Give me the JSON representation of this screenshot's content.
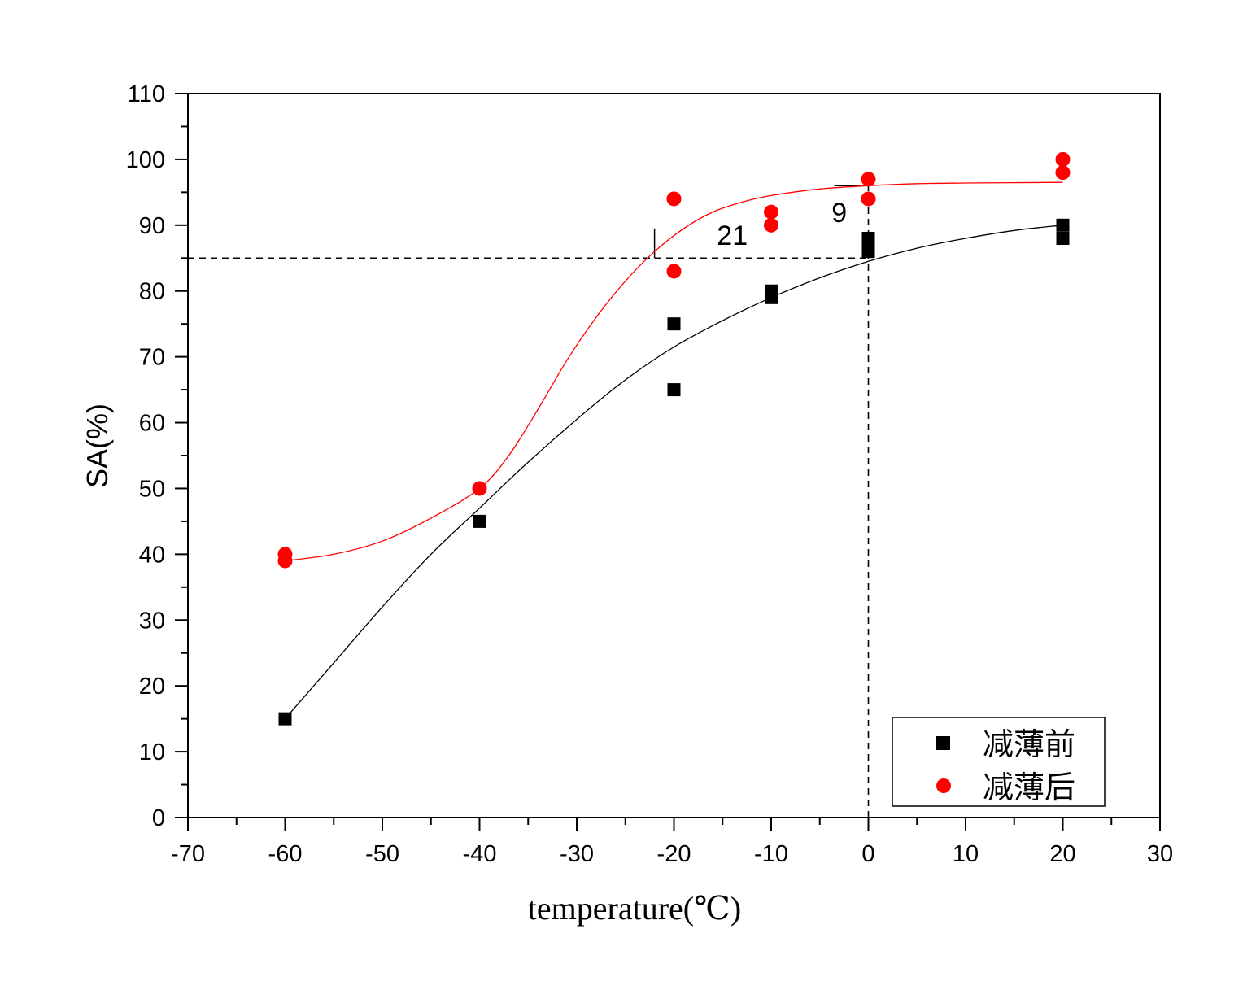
{
  "chart_data": {
    "type": "scatter",
    "xlabel": "temperature(℃)",
    "ylabel": "SA(%)",
    "xlim": [
      -70,
      30
    ],
    "ylim": [
      0,
      110
    ],
    "xticks": [
      -70,
      -60,
      -50,
      -40,
      -30,
      -20,
      -10,
      0,
      10,
      20,
      30
    ],
    "yticks": [
      0,
      10,
      20,
      30,
      40,
      50,
      60,
      70,
      80,
      90,
      100,
      110
    ],
    "xtick_labels": [
      "-70",
      "-60",
      "-50",
      "-40",
      "-30",
      "-20",
      "-10",
      "0",
      "10",
      "20",
      "30"
    ],
    "ytick_labels": [
      "0",
      "10",
      "20",
      "30",
      "40",
      "50",
      "60",
      "70",
      "80",
      "90",
      "100",
      "110"
    ],
    "grid": false,
    "legend_position": "bottom-right",
    "series": [
      {
        "name": "减薄前",
        "marker": "square",
        "color": "#000000",
        "x": [
          -60,
          -40,
          -20,
          -20,
          -10,
          -10,
          0,
          0,
          0,
          20,
          20
        ],
        "y": [
          15,
          45,
          75,
          65,
          80,
          79,
          88,
          87,
          86,
          90,
          88
        ],
        "fit_curve": {
          "x": [
            -60,
            -55,
            -50,
            -45,
            -40,
            -35,
            -30,
            -25,
            -20,
            -15,
            -10,
            -5,
            0,
            5,
            10,
            15,
            20
          ],
          "y": [
            15,
            23.5,
            32,
            40,
            47,
            54,
            60.5,
            66.5,
            71.5,
            75.5,
            79,
            82,
            84.5,
            86.5,
            88,
            89.2,
            90
          ]
        }
      },
      {
        "name": "减薄后",
        "marker": "circle",
        "color": "#ff0000",
        "x": [
          -60,
          -60,
          -40,
          -20,
          -20,
          -10,
          -10,
          0,
          0,
          20,
          20
        ],
        "y": [
          40,
          39,
          50,
          94,
          83,
          92,
          90,
          97,
          94,
          100,
          98
        ],
        "fit_curve": {
          "x": [
            -60,
            -55,
            -50,
            -45,
            -40,
            -37,
            -34,
            -31,
            -28,
            -25,
            -22,
            -19,
            -16,
            -13,
            -10,
            -5,
            0,
            5,
            10,
            20
          ],
          "y": [
            39,
            40,
            42,
            45.5,
            50,
            55,
            62,
            69.5,
            76,
            81.5,
            86,
            89.5,
            92,
            93.5,
            94.5,
            95.5,
            96,
            96.3,
            96.4,
            96.5
          ]
        }
      }
    ],
    "reference_lines": {
      "horizontal_y": 85,
      "horizontal_x_range": [
        -70,
        0
      ],
      "vertical_x": 0,
      "vertical_y_range": [
        0,
        96
      ]
    },
    "annotations": [
      {
        "text": "21",
        "x": -14,
        "y": 87
      },
      {
        "text": "9",
        "x": -3,
        "y": 90.5
      }
    ],
    "marker_ticks": [
      {
        "x": -22,
        "y_from": 85,
        "y_to": 89.5
      },
      {
        "x_from": -3.5,
        "x_to": 0,
        "y": 96
      }
    ]
  }
}
